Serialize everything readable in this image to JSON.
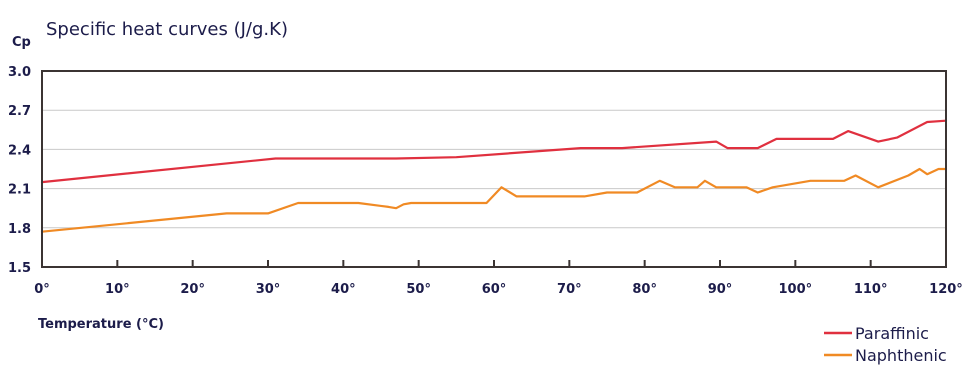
{
  "colors": {
    "text": "#1c1c4a",
    "axis": "#3b3433",
    "grid": "#c9c9c9",
    "paraffinic": "#e0303f",
    "naphthenic": "#f08a24"
  },
  "chart_data": {
    "type": "line",
    "title": "Specific heat curves (J/g.K)",
    "ylabel": "Cp",
    "xlabel": "Temperature (°C)",
    "ylim": [
      1.5,
      3.0
    ],
    "xlim": [
      0,
      120
    ],
    "yticks": [
      "1.5",
      "1.8",
      "2.1",
      "2.4",
      "2.7",
      "3.0"
    ],
    "ytick_values": [
      1.5,
      1.8,
      2.1,
      2.4,
      2.7,
      3.0
    ],
    "xticks": [
      "0°",
      "10°",
      "20°",
      "30°",
      "40°",
      "50°",
      "60°",
      "70°",
      "80°",
      "90°",
      "100°",
      "110°",
      "120°"
    ],
    "xtick_values": [
      0,
      10,
      20,
      30,
      40,
      50,
      60,
      70,
      80,
      90,
      100,
      110,
      120
    ],
    "grid": "horizontal",
    "legend_position": "bottom-right",
    "series": [
      {
        "name": "Paraffinic",
        "color": "#e0303f",
        "points": [
          [
            0,
            2.15
          ],
          [
            31,
            2.33
          ],
          [
            47,
            2.33
          ],
          [
            55,
            2.34
          ],
          [
            71.5,
            2.41
          ],
          [
            77,
            2.41
          ],
          [
            89.5,
            2.46
          ],
          [
            91,
            2.41
          ],
          [
            95,
            2.41
          ],
          [
            97.5,
            2.48
          ],
          [
            105,
            2.48
          ],
          [
            107,
            2.54
          ],
          [
            111,
            2.46
          ],
          [
            113.5,
            2.49
          ],
          [
            117.5,
            2.61
          ],
          [
            120,
            2.62
          ]
        ]
      },
      {
        "name": "Naphthenic",
        "color": "#f08a24",
        "points": [
          [
            0,
            1.77
          ],
          [
            24.5,
            1.91
          ],
          [
            30,
            1.91
          ],
          [
            34,
            1.99
          ],
          [
            42,
            1.99
          ],
          [
            46,
            1.96
          ],
          [
            47,
            1.95
          ],
          [
            48,
            1.98
          ],
          [
            49,
            1.99
          ],
          [
            59,
            1.99
          ],
          [
            61,
            2.11
          ],
          [
            63,
            2.04
          ],
          [
            72,
            2.04
          ],
          [
            75,
            2.07
          ],
          [
            79,
            2.07
          ],
          [
            82,
            2.16
          ],
          [
            84,
            2.11
          ],
          [
            87,
            2.11
          ],
          [
            88,
            2.16
          ],
          [
            89.5,
            2.11
          ],
          [
            93.5,
            2.11
          ],
          [
            95,
            2.07
          ],
          [
            97,
            2.11
          ],
          [
            102,
            2.16
          ],
          [
            106.5,
            2.16
          ],
          [
            108,
            2.2
          ],
          [
            111,
            2.11
          ],
          [
            115,
            2.2
          ],
          [
            116.5,
            2.25
          ],
          [
            117.5,
            2.21
          ],
          [
            119,
            2.25
          ],
          [
            120,
            2.25
          ]
        ]
      }
    ]
  }
}
